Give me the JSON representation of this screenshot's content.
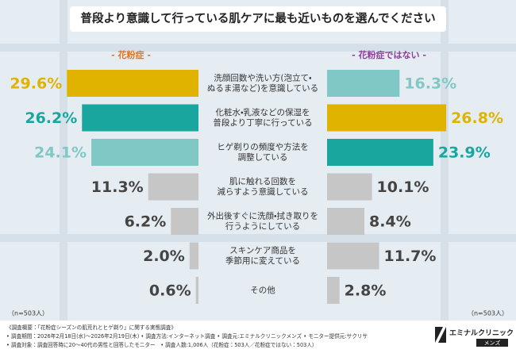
{
  "chart_data": {
    "type": "butterfly",
    "title": "普段より意識して行っている肌ケアに最も近いものを選んでください",
    "categories": [
      [
        "洗顔回数や洗い方(泡立て・",
        "ぬるま湯など)を意識している"
      ],
      [
        "化粧水・乳液などの保湿を",
        "普段より丁寧に行っている"
      ],
      [
        "ヒゲ剃りの頻度や方法を",
        "調整している"
      ],
      [
        "肌に触れる回数を",
        "減らすよう意識している"
      ],
      [
        "外出後すぐに洗顔・拭き取りを",
        "行うようにしている"
      ],
      [
        "スキンケア商品を",
        "季節用に変えている"
      ],
      [
        "その他"
      ]
    ],
    "series": [
      {
        "name": "- 花粉症 -",
        "name_color": "#e2731c",
        "values": [
          29.6,
          26.2,
          24.1,
          11.3,
          6.2,
          2.0,
          0.6
        ],
        "value_labels": [
          "29.6%",
          "26.2%",
          "24.1%",
          "11.3%",
          "6.2%",
          "2.0%",
          "0.6%"
        ],
        "colors": [
          "#dfb300",
          "#18a69e",
          "#7fc8c5",
          "#c6c6c6",
          "#c6c6c6",
          "#c6c6c6",
          "#c6c6c6"
        ],
        "label_colors": [
          "#dfb300",
          "#18a69e",
          "#7fc8c5",
          "#444444",
          "#444444",
          "#444444",
          "#444444"
        ],
        "n_label": "（n=503人）"
      },
      {
        "name": "- 花粉症ではない -",
        "name_color": "#8c3d98",
        "values": [
          16.3,
          26.8,
          23.9,
          10.1,
          8.4,
          11.7,
          2.8
        ],
        "value_labels": [
          "16.3%",
          "26.8%",
          "23.9%",
          "10.1%",
          "8.4%",
          "11.7%",
          "2.8%"
        ],
        "colors": [
          "#7fc8c5",
          "#dfb300",
          "#18a69e",
          "#c6c6c6",
          "#c6c6c6",
          "#c6c6c6",
          "#c6c6c6"
        ],
        "label_colors": [
          "#7fc8c5",
          "#dfb300",
          "#18a69e",
          "#444444",
          "#444444",
          "#444444",
          "#444444"
        ],
        "n_label": "（n=503人）"
      }
    ]
  },
  "footer": {
    "lines": [
      "《調査概要：「花粉症シーズンの肌荒れとヒゲ剃り」に関する実態調査》",
      "• 調査期間：2026年2月18日(水)～2026年2月19日(木) • 調査方法:インターネット調査 • 調査元:エミナルクリニックメンズ • モニター提供元:サクリサ",
      "• 調査対象：調査回答時に20～40代の男性と回答したモニター　• 調査人数:1,006人（花粉症：503人／花粉症ではない：503人）"
    ],
    "logo": "エミナルクリニック",
    "logo_sub": "メンズ"
  }
}
